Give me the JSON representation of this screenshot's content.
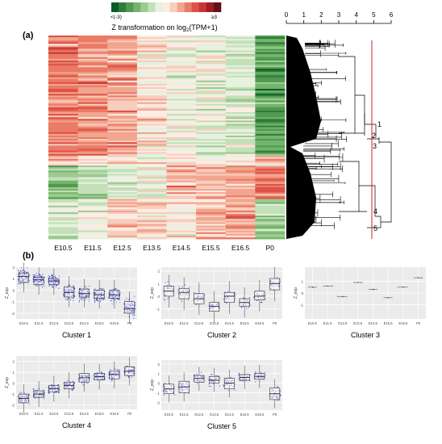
{
  "panel_a_label": "(a)",
  "panel_b_label": "(b)",
  "colorbar": {
    "min_label": "<(-3)",
    "max_label": "≥3",
    "title": "Z transformation on log",
    "title_sub": "2",
    "title_tail": "(TPM+1)",
    "colors": [
      "#0b5c24",
      "#2f7d3a",
      "#4f9a50",
      "#74b46c",
      "#9ccb91",
      "#c3e0b8",
      "#e6f1df",
      "#fbece4",
      "#f8cdbd",
      "#f2a58f",
      "#ea7b66",
      "#de5248",
      "#c83434",
      "#9b1d27",
      "#6a0d1a"
    ]
  },
  "dendrogram": {
    "scale_ticks": [
      "0",
      "1",
      "2",
      "3",
      "4",
      "5",
      "6"
    ],
    "cut_color": "#cc2222",
    "cluster_labels": [
      "1",
      "2",
      "3",
      "4",
      "5"
    ]
  },
  "chart_data": [
    {
      "type": "heatmap",
      "title": "",
      "columns": [
        "E10.5",
        "E11.5",
        "E12.5",
        "E13.5",
        "E14.5",
        "E15.5",
        "E16.5",
        "P0"
      ],
      "value_range": [
        -3,
        3
      ],
      "row_blocks": [
        {
          "cluster": "1",
          "profile": [
            1.2,
            0.9,
            0.8,
            0.1,
            -0.2,
            -0.4,
            -0.6,
            -1.8
          ]
        },
        {
          "cluster": "2",
          "profile": [
            0.3,
            0.2,
            -0.1,
            -0.3,
            -0.1,
            -0.4,
            0.1,
            0.9
          ]
        },
        {
          "cluster": "3",
          "profile": [
            0.1,
            0.0,
            -0.1,
            0.0,
            0.1,
            -0.1,
            0.0,
            0.2
          ]
        },
        {
          "cluster": "4",
          "profile": [
            -1.3,
            -1.0,
            -0.6,
            -0.3,
            0.5,
            0.6,
            0.8,
            1.1
          ]
        },
        {
          "cluster": "5",
          "profile": [
            -0.6,
            -0.3,
            0.4,
            0.3,
            0.1,
            0.6,
            0.7,
            -1.1
          ]
        }
      ]
    },
    {
      "type": "scatter",
      "title": "Cluster 1",
      "xlabel": "",
      "ylabel": "Z_exp",
      "categories": [
        "E10.5",
        "E11.5",
        "E12.5",
        "E13.5",
        "E14.5",
        "E15.5",
        "E16.5",
        "P0"
      ],
      "yticks": [
        "-2",
        "-1",
        "0",
        "1",
        "2"
      ],
      "ylim": [
        -2.5,
        2.0
      ],
      "medians": [
        1.2,
        0.9,
        0.8,
        -0.2,
        -0.3,
        -0.4,
        -0.4,
        -1.6
      ],
      "q1": [
        0.7,
        0.5,
        0.5,
        -0.6,
        -0.6,
        -0.7,
        -0.7,
        -2.0
      ],
      "q3": [
        1.5,
        1.1,
        1.0,
        0.3,
        0.1,
        0.0,
        0.0,
        -1.0
      ],
      "spread": [
        0.6,
        0.5,
        0.45,
        0.6,
        0.5,
        0.5,
        0.5,
        0.7
      ],
      "n_points": 90
    },
    {
      "type": "scatter",
      "title": "Cluster 2",
      "xlabel": "",
      "ylabel": "Z_exp",
      "categories": [
        "E10.5",
        "E11.5",
        "E12.5",
        "E13.5",
        "E14.5",
        "E15.5",
        "E16.5",
        "P0"
      ],
      "yticks": [
        "-1",
        "0",
        "1",
        "2"
      ],
      "ylim": [
        -1.8,
        2.3
      ],
      "medians": [
        0.4,
        0.3,
        -0.2,
        -0.8,
        0.0,
        -0.5,
        0.0,
        1.0
      ],
      "q1": [
        0.0,
        -0.2,
        -0.6,
        -1.2,
        -0.5,
        -0.8,
        -0.3,
        0.5
      ],
      "q3": [
        0.8,
        0.6,
        0.2,
        -0.5,
        0.3,
        -0.2,
        0.4,
        1.4
      ],
      "spread": [
        0.7,
        0.6,
        0.5,
        0.4,
        0.6,
        0.4,
        0.5,
        0.5
      ],
      "n_points": 25
    },
    {
      "type": "scatter",
      "title": "Cluster 3",
      "xlabel": "",
      "ylabel": "Z_exp",
      "categories": [
        "E10.5",
        "E11.5",
        "E12.5",
        "E13.5",
        "E14.5",
        "E15.5",
        "E16.5",
        "P0"
      ],
      "yticks": [
        "-1",
        "0",
        "1"
      ],
      "ylim": [
        -2.2,
        2.2
      ],
      "medians": [
        0.5,
        0.6,
        -0.3,
        0.9,
        0.3,
        -0.4,
        0.5,
        1.3
      ],
      "q1": [
        0.5,
        0.6,
        -0.3,
        0.9,
        0.3,
        -0.4,
        0.5,
        1.3
      ],
      "q3": [
        0.5,
        0.6,
        -0.3,
        0.9,
        0.3,
        -0.4,
        0.5,
        1.3
      ],
      "spread": [
        0.05,
        0.05,
        0.05,
        0.05,
        0.05,
        0.05,
        0.05,
        0.05
      ],
      "n_points": 1
    },
    {
      "type": "scatter",
      "title": "Cluster 4",
      "xlabel": "",
      "ylabel": "Z_exp",
      "categories": [
        "E10.5",
        "E11.5",
        "E12.5",
        "E13.5",
        "E14.5",
        "E15.5",
        "E16.5",
        "P0"
      ],
      "yticks": [
        "-2",
        "-1",
        "0",
        "1",
        "2"
      ],
      "ylim": [
        -2.4,
        2.5
      ],
      "medians": [
        -1.4,
        -1.0,
        -0.5,
        -0.2,
        0.5,
        0.6,
        0.8,
        1.1
      ],
      "q1": [
        -1.8,
        -1.3,
        -0.8,
        -0.5,
        0.1,
        0.3,
        0.4,
        0.7
      ],
      "q3": [
        -1.0,
        -0.7,
        -0.2,
        0.1,
        0.9,
        0.9,
        1.1,
        1.5
      ],
      "spread": [
        0.5,
        0.4,
        0.4,
        0.4,
        0.5,
        0.4,
        0.4,
        0.5
      ],
      "n_points": 60
    },
    {
      "type": "scatter",
      "title": "Cluster 5",
      "xlabel": "",
      "ylabel": "Z_exp",
      "categories": [
        "E10.5",
        "E11.5",
        "E12.5",
        "E13.5",
        "E14.5",
        "E15.5",
        "E16.5",
        "P0"
      ],
      "yticks": [
        "-2",
        "-1",
        "0",
        "1",
        "2"
      ],
      "ylim": [
        -2.8,
        2.4
      ],
      "medians": [
        -0.6,
        -0.4,
        0.5,
        0.3,
        0.0,
        0.6,
        0.7,
        -1.1
      ],
      "q1": [
        -1.1,
        -1.0,
        0.1,
        0.0,
        -0.6,
        0.3,
        0.4,
        -1.7
      ],
      "q3": [
        -0.1,
        0.2,
        0.8,
        0.7,
        0.5,
        0.9,
        1.0,
        -0.5
      ],
      "spread": [
        0.6,
        0.7,
        0.5,
        0.5,
        0.7,
        0.4,
        0.4,
        0.6
      ],
      "n_points": 35
    }
  ]
}
